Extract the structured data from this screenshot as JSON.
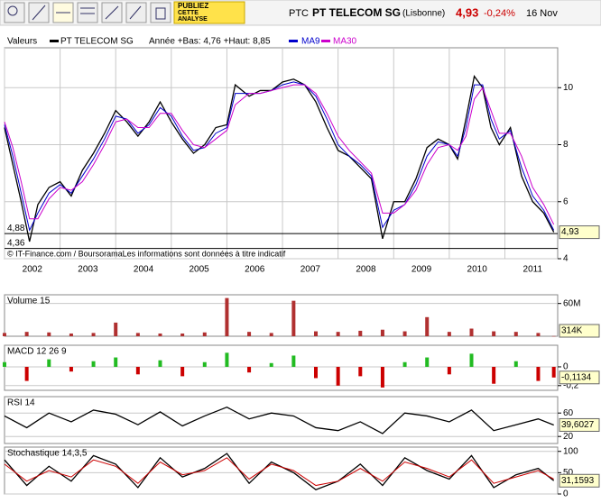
{
  "toolbar": {
    "publish": [
      "PUBLIEZ",
      "CETTE",
      "ANALYSE"
    ],
    "ticker": "PTC",
    "name": "PT TELECOM SG",
    "market": "(Lisbonne)",
    "price": "4,93",
    "change": "-0,24%",
    "date": "16 Nov"
  },
  "chart_data": [
    {
      "type": "line",
      "legend_title": "Valeurs",
      "note": "Année +Bas: 4,76 +Haut: 8,85",
      "credit": "© IT-Finance.com / BoursoramaLes informations sont données à titre indicatif",
      "x": [
        2002.0,
        2002.15,
        2002.3,
        2002.45,
        2002.6,
        2002.8,
        2003.0,
        2003.2,
        2003.4,
        2003.6,
        2003.8,
        2004.0,
        2004.2,
        2004.4,
        2004.6,
        2004.8,
        2005.0,
        2005.2,
        2005.4,
        2005.6,
        2005.8,
        2006.0,
        2006.15,
        2006.4,
        2006.6,
        2006.8,
        2007.0,
        2007.2,
        2007.4,
        2007.6,
        2007.8,
        2008.0,
        2008.2,
        2008.4,
        2008.6,
        2008.8,
        2009.0,
        2009.2,
        2009.4,
        2009.6,
        2009.8,
        2010.0,
        2010.15,
        2010.3,
        2010.45,
        2010.6,
        2010.75,
        2010.9,
        2011.1,
        2011.3,
        2011.5,
        2011.7,
        2011.88
      ],
      "series": [
        {
          "name": "PT TELECOM SG",
          "color": "#000000",
          "values": [
            8.6,
            7.3,
            6.0,
            4.6,
            5.9,
            6.5,
            6.7,
            6.2,
            7.1,
            7.7,
            8.4,
            9.2,
            8.8,
            8.3,
            8.8,
            9.5,
            8.8,
            8.2,
            7.7,
            8.0,
            8.6,
            8.7,
            10.1,
            9.7,
            9.9,
            9.9,
            10.2,
            10.3,
            10.1,
            9.5,
            8.6,
            7.8,
            7.6,
            7.2,
            6.8,
            4.7,
            6.0,
            6.0,
            6.8,
            7.9,
            8.2,
            8.0,
            7.5,
            8.9,
            10.4,
            10.0,
            8.6,
            8.0,
            8.6,
            6.9,
            6.0,
            5.6,
            4.93
          ]
        },
        {
          "name": "MA9",
          "color": "#0000cc",
          "values": [
            8.7,
            7.6,
            6.3,
            5.0,
            5.6,
            6.3,
            6.6,
            6.3,
            6.9,
            7.5,
            8.2,
            9.0,
            8.9,
            8.4,
            8.7,
            9.3,
            9.0,
            8.3,
            7.8,
            7.9,
            8.4,
            8.6,
            9.8,
            9.8,
            9.8,
            9.9,
            10.1,
            10.2,
            10.1,
            9.7,
            8.9,
            8.0,
            7.6,
            7.3,
            6.9,
            5.1,
            5.7,
            5.9,
            6.6,
            7.6,
            8.1,
            8.0,
            7.6,
            8.6,
            10.1,
            10.1,
            8.9,
            8.2,
            8.5,
            7.2,
            6.2,
            5.7,
            5.0
          ]
        },
        {
          "name": "MA30",
          "color": "#cc00cc",
          "values": [
            8.8,
            7.9,
            6.7,
            5.4,
            5.4,
            6.1,
            6.5,
            6.4,
            6.7,
            7.3,
            8.0,
            8.8,
            8.9,
            8.6,
            8.6,
            9.1,
            9.1,
            8.5,
            8.0,
            7.9,
            8.2,
            8.5,
            9.4,
            9.8,
            9.8,
            9.9,
            10.0,
            10.1,
            10.1,
            9.8,
            9.1,
            8.3,
            7.8,
            7.4,
            7.0,
            5.6,
            5.6,
            5.9,
            6.4,
            7.3,
            7.9,
            8.0,
            7.8,
            8.3,
            9.6,
            10.0,
            9.2,
            8.4,
            8.4,
            7.6,
            6.5,
            5.9,
            5.2
          ]
        }
      ],
      "xlim": [
        2002,
        2011.95
      ],
      "xticks": [
        2002,
        2003,
        2004,
        2005,
        2006,
        2007,
        2008,
        2009,
        2010,
        2011
      ],
      "ylim": [
        4,
        11.4
      ],
      "yticks": [
        4,
        6,
        8,
        10
      ],
      "grid": true,
      "hlines": [
        {
          "value": 4.88,
          "label": "4,88"
        },
        {
          "value": 4.36,
          "label": "4,36"
        }
      ],
      "last": {
        "value": 4.93,
        "label": "4,93"
      }
    },
    {
      "type": "bar",
      "title": "Volume 15",
      "color": "#b03030",
      "x": [
        2002.0,
        2002.4,
        2002.8,
        2003.2,
        2003.6,
        2004.0,
        2004.4,
        2004.8,
        2005.2,
        2005.6,
        2006.0,
        2006.4,
        2006.8,
        2007.2,
        2007.6,
        2008.0,
        2008.4,
        2008.8,
        2009.2,
        2009.6,
        2010.0,
        2010.4,
        2010.8,
        2011.2,
        2011.6,
        2011.88
      ],
      "values": [
        6000000,
        8000000,
        7000000,
        5000000,
        6000000,
        25000000,
        6000000,
        5000000,
        5000000,
        7000000,
        70000000,
        8000000,
        6000000,
        65000000,
        9000000,
        8000000,
        10000000,
        12000000,
        9000000,
        35000000,
        8000000,
        14000000,
        9000000,
        8000000,
        6000000,
        314000
      ],
      "xlim": [
        2002,
        2011.95
      ],
      "ylim": [
        0,
        76000000
      ],
      "yticks": [
        {
          "value": 60000000,
          "label": "60M"
        }
      ],
      "last": {
        "value": 314000,
        "label": "314K"
      }
    },
    {
      "type": "bar",
      "title": "MACD 12 26 9",
      "positive_color": "#22bb22",
      "negative_color": "#cc0000",
      "x": [
        2002.0,
        2002.4,
        2002.8,
        2003.2,
        2003.6,
        2004.0,
        2004.4,
        2004.8,
        2005.2,
        2005.6,
        2006.0,
        2006.4,
        2006.8,
        2007.2,
        2007.6,
        2008.0,
        2008.4,
        2008.8,
        2009.2,
        2009.6,
        2010.0,
        2010.4,
        2010.8,
        2011.2,
        2011.6,
        2011.88
      ],
      "values": [
        0.05,
        -0.15,
        0.08,
        -0.05,
        0.06,
        0.1,
        -0.08,
        0.07,
        -0.1,
        0.05,
        0.15,
        -0.06,
        0.04,
        0.12,
        -0.12,
        -0.2,
        -0.1,
        -0.22,
        0.05,
        0.1,
        -0.08,
        0.14,
        -0.18,
        0.06,
        -0.15,
        -0.1134
      ],
      "xlim": [
        2002,
        2011.95
      ],
      "ylim": [
        -0.25,
        0.23
      ],
      "yticks": [
        0,
        {
          "value": -0.2,
          "label": "-0,2"
        }
      ],
      "last": {
        "value": -0.1134,
        "label": "-0,1134"
      }
    },
    {
      "type": "line",
      "title": "RSI 14",
      "x": [
        2002.0,
        2002.4,
        2002.8,
        2003.2,
        2003.6,
        2004.0,
        2004.4,
        2004.8,
        2005.2,
        2005.6,
        2006.0,
        2006.4,
        2006.8,
        2007.2,
        2007.6,
        2008.0,
        2008.4,
        2008.8,
        2009.2,
        2009.6,
        2010.0,
        2010.4,
        2010.8,
        2011.2,
        2011.6,
        2011.88
      ],
      "series": [
        {
          "color": "#000000",
          "values": [
            55,
            35,
            60,
            45,
            65,
            58,
            40,
            62,
            38,
            55,
            70,
            50,
            60,
            55,
            35,
            30,
            45,
            25,
            60,
            55,
            45,
            65,
            30,
            40,
            50,
            39.6027
          ]
        }
      ],
      "xlim": [
        2002,
        2011.95
      ],
      "ylim": [
        8,
        88
      ],
      "yticks": [
        20,
        60
      ],
      "last": {
        "value": 39.6027,
        "label": "39,6027"
      }
    },
    {
      "type": "line",
      "title": "Stochastique 14,3,5",
      "x": [
        2002.0,
        2002.4,
        2002.8,
        2003.2,
        2003.6,
        2004.0,
        2004.4,
        2004.8,
        2005.2,
        2005.6,
        2006.0,
        2006.4,
        2006.8,
        2007.2,
        2007.6,
        2008.0,
        2008.4,
        2008.8,
        2009.2,
        2009.6,
        2010.0,
        2010.4,
        2010.8,
        2011.2,
        2011.6,
        2011.88
      ],
      "series": [
        {
          "color": "#000000",
          "values": [
            80,
            20,
            65,
            30,
            90,
            70,
            15,
            85,
            40,
            60,
            95,
            25,
            75,
            50,
            10,
            30,
            70,
            20,
            85,
            55,
            35,
            90,
            15,
            45,
            60,
            31.1593
          ]
        },
        {
          "color": "#cc0000",
          "values": [
            70,
            30,
            55,
            40,
            80,
            65,
            25,
            75,
            45,
            55,
            85,
            35,
            70,
            55,
            20,
            30,
            60,
            30,
            75,
            60,
            40,
            80,
            25,
            40,
            55,
            35
          ]
        }
      ],
      "xlim": [
        2002,
        2011.95
      ],
      "ylim": [
        0,
        110
      ],
      "yticks": [
        0,
        50,
        100
      ],
      "last": {
        "value": 31.1593,
        "label": "31,1593"
      }
    }
  ]
}
